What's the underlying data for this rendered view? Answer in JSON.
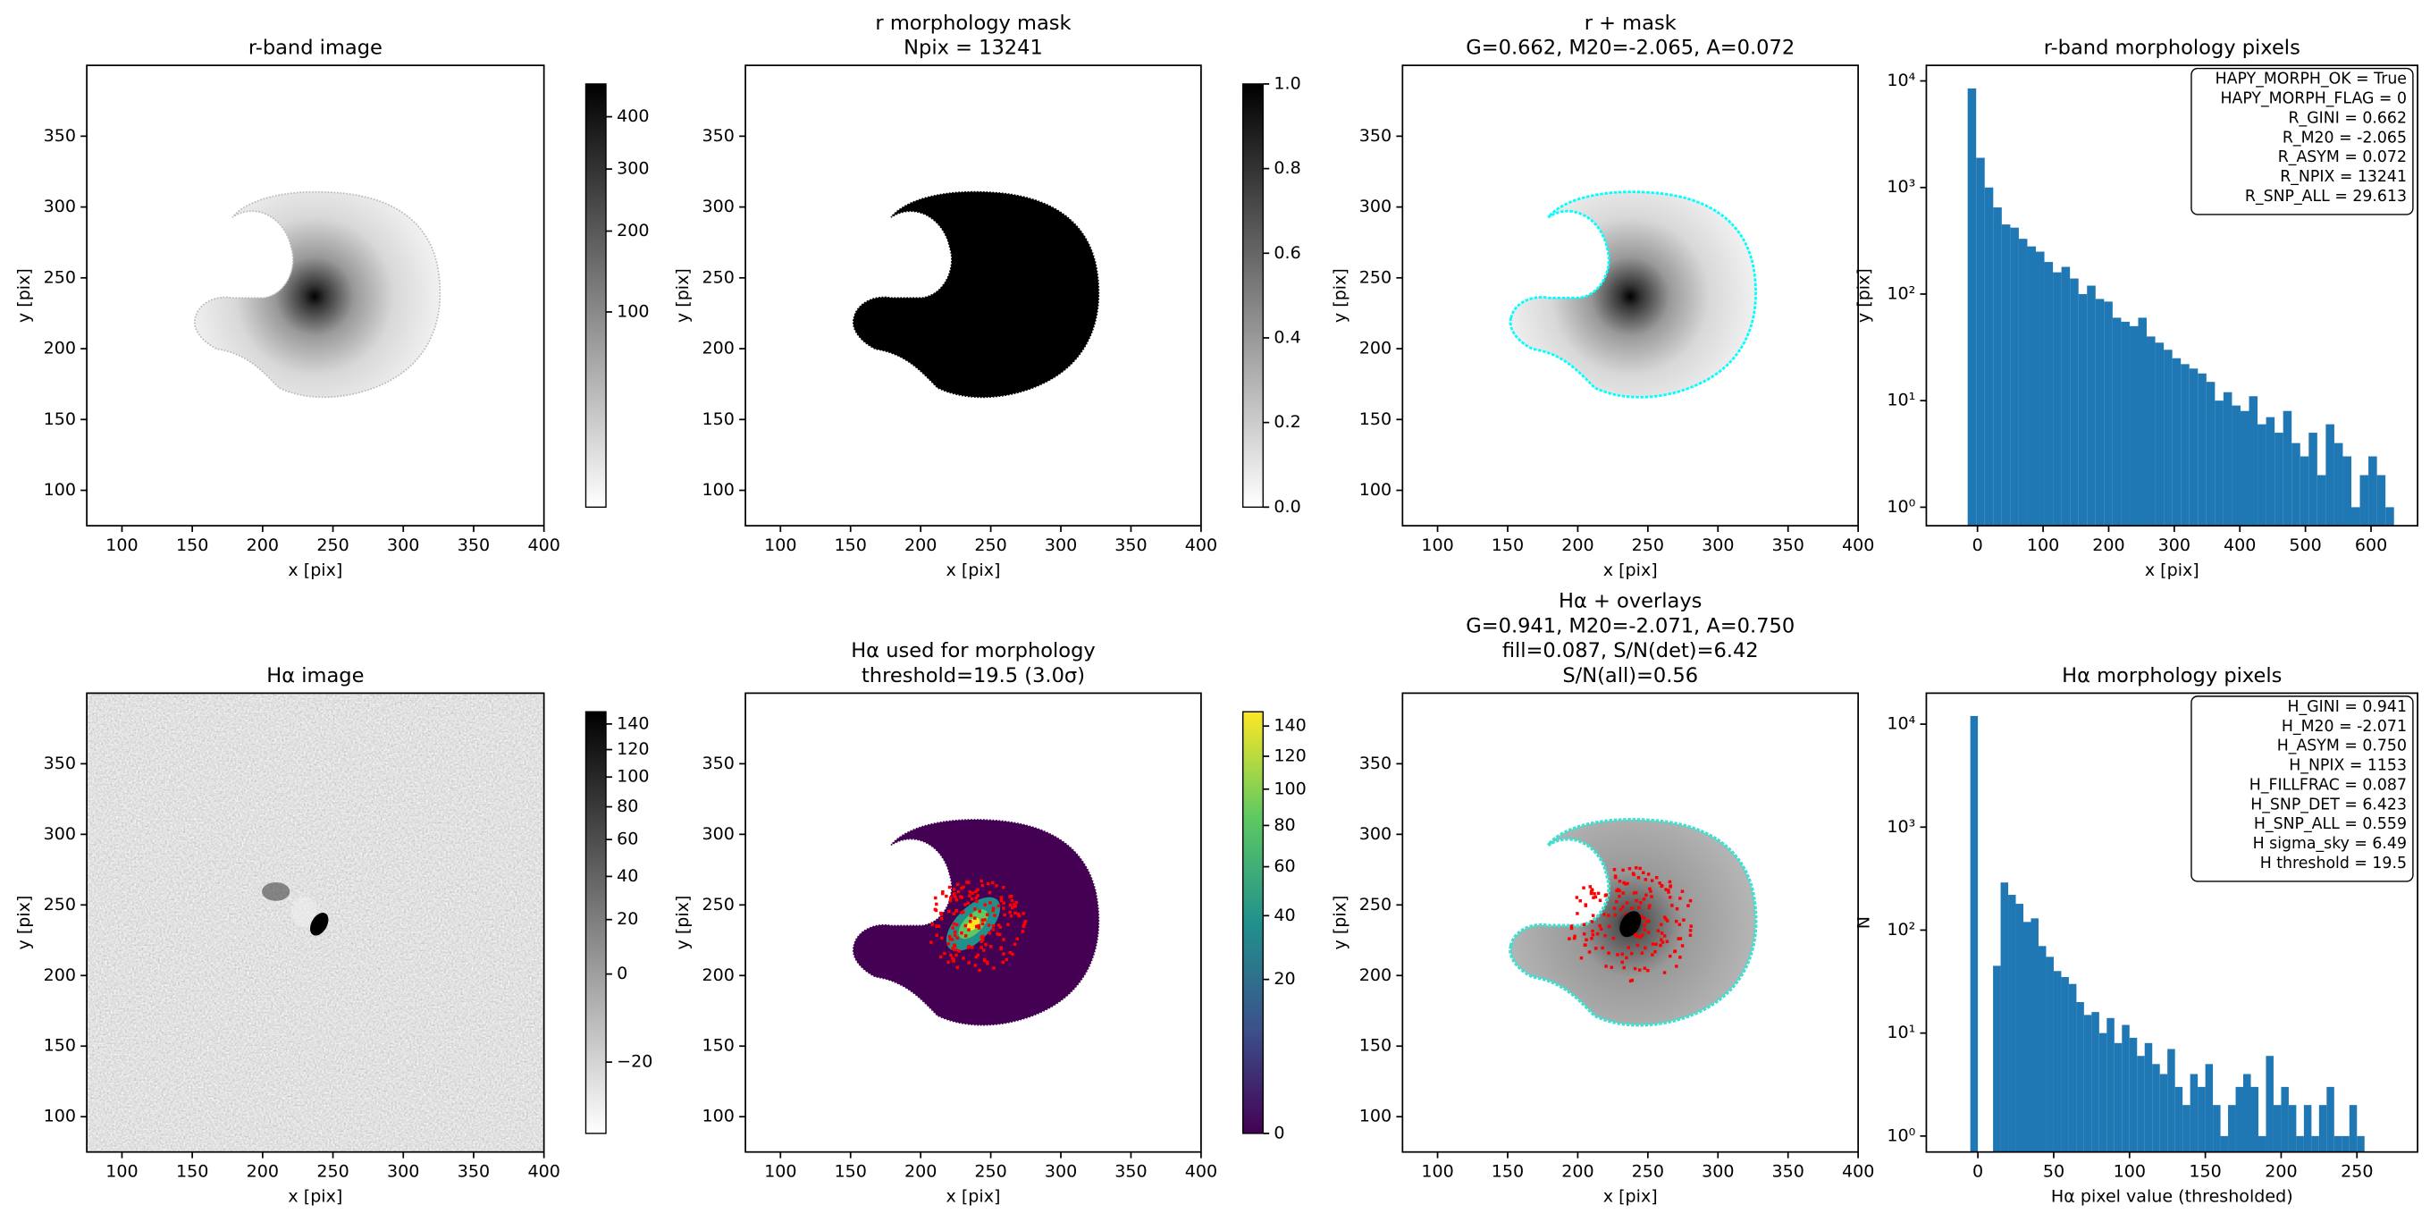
{
  "chart_data": [
    {
      "type": "image",
      "title": [
        "r-band image"
      ],
      "xlabel": "x [pix]",
      "ylabel": "y [pix]",
      "xlim": [
        75,
        400
      ],
      "ylim": [
        75,
        400
      ],
      "xticks": [
        100,
        150,
        200,
        250,
        300,
        350,
        400
      ],
      "yticks": [
        100,
        150,
        200,
        250,
        300,
        350
      ],
      "colorbar": {
        "cmap": "gray_r",
        "scale": "sqrt",
        "lim": [
          0,
          470
        ],
        "ticks": [
          100,
          200,
          300,
          400
        ]
      }
    },
    {
      "type": "image",
      "title": [
        "r morphology mask",
        "Npix = 13241"
      ],
      "xlabel": "x [pix]",
      "ylabel": "y [pix]",
      "xlim": [
        75,
        400
      ],
      "ylim": [
        75,
        400
      ],
      "xticks": [
        100,
        150,
        200,
        250,
        300,
        350,
        400
      ],
      "yticks": [
        100,
        150,
        200,
        250,
        300,
        350
      ],
      "colorbar": {
        "cmap": "gray_r",
        "scale": "linear",
        "lim": [
          0,
          1
        ],
        "ticks": [
          {
            "value": 0,
            "label": "0.0"
          },
          0.2,
          0.4,
          0.6,
          0.8,
          {
            "value": 1,
            "label": "1.0"
          }
        ]
      }
    },
    {
      "type": "image",
      "title": [
        "r + mask",
        "G=0.662, M20=-2.065, A=0.072"
      ],
      "xlabel": "x [pix]",
      "ylabel": "y [pix]",
      "xlim": [
        75,
        400
      ],
      "ylim": [
        75,
        400
      ],
      "xticks": [
        100,
        150,
        200,
        250,
        300,
        350,
        400
      ],
      "yticks": [
        100,
        150,
        200,
        250,
        300,
        350
      ]
    },
    {
      "type": "histogram",
      "title": [
        "r-band morphology pixels"
      ],
      "xlabel": "x [pix]",
      "ylabel": "y [pix]",
      "color": "#1f77b4",
      "log_y": true,
      "xlim": [
        -78,
        671
      ],
      "ylim": [
        0.67,
        14000
      ],
      "xticks": [
        0,
        100,
        200,
        300,
        400,
        500,
        600
      ],
      "yticks": [
        {
          "value": 1,
          "label": "10⁰"
        },
        {
          "value": 10,
          "label": "10¹"
        },
        {
          "value": 100,
          "label": "10²"
        },
        {
          "value": 1000,
          "label": "10³"
        },
        {
          "value": 10000,
          "label": "10⁴"
        }
      ],
      "bins": [
        -15,
        -2,
        11,
        24,
        37,
        50,
        63,
        76,
        89,
        102,
        115,
        128,
        141,
        154,
        167,
        180,
        193,
        206,
        219,
        232,
        245,
        258,
        271,
        284,
        297,
        310,
        323,
        336,
        349,
        362,
        375,
        388,
        401,
        414,
        427,
        440,
        453,
        466,
        479,
        492,
        505,
        518,
        531,
        544,
        557,
        570,
        583,
        596,
        609,
        622,
        635
      ],
      "values": [
        8500,
        1900,
        1000,
        650,
        450,
        420,
        330,
        280,
        250,
        200,
        160,
        180,
        140,
        100,
        120,
        90,
        85,
        60,
        55,
        50,
        60,
        40,
        35,
        30,
        25,
        22,
        20,
        18,
        15,
        10,
        12,
        9,
        8,
        11,
        6,
        7,
        5,
        8,
        4,
        3,
        5,
        2,
        6,
        4,
        3,
        1,
        2,
        3,
        2,
        1
      ],
      "annotation": [
        "HAPY_MORPH_OK = True",
        "HAPY_MORPH_FLAG = 0",
        "R_GINI = 0.662",
        "R_M20 = -2.065",
        "R_ASYM = 0.072",
        "R_NPIX = 13241",
        "R_SNP_ALL = 29.613"
      ]
    },
    {
      "type": "image",
      "title": [
        "Hα image"
      ],
      "xlabel": "x [pix]",
      "ylabel": "y [pix]",
      "xlim": [
        75,
        400
      ],
      "ylim": [
        75,
        400
      ],
      "xticks": [
        100,
        150,
        200,
        250,
        300,
        350,
        400
      ],
      "yticks": [
        100,
        150,
        200,
        250,
        300,
        350
      ],
      "colorbar": {
        "cmap": "gray_r",
        "scale": "sqrt",
        "lim": [
          -25,
          150
        ],
        "ticks": [
          {
            "value": -20,
            "label": "−20"
          },
          0,
          20,
          40,
          60,
          80,
          100,
          120,
          140
        ]
      }
    },
    {
      "type": "image",
      "title": [
        "Hα used for morphology",
        "threshold=19.5 (3.0σ)"
      ],
      "xlabel": "x [pix]",
      "ylabel": "y [pix]",
      "xlim": [
        75,
        400
      ],
      "ylim": [
        75,
        400
      ],
      "xticks": [
        100,
        150,
        200,
        250,
        300,
        350,
        400
      ],
      "yticks": [
        100,
        150,
        200,
        250,
        300,
        350
      ],
      "colorbar": {
        "cmap": "viridis",
        "scale": "sqrt",
        "lim": [
          0,
          150
        ],
        "ticks": [
          0,
          20,
          40,
          60,
          80,
          100,
          120,
          140
        ]
      }
    },
    {
      "type": "image",
      "title": [
        "Hα + overlays",
        "G=0.941, M20=-2.071, A=0.750",
        "fill=0.087, S/N(det)=6.42",
        "S/N(all)=0.56"
      ],
      "xlabel": "x [pix]",
      "ylabel": "y [pix]",
      "xlim": [
        75,
        400
      ],
      "ylim": [
        75,
        400
      ],
      "xticks": [
        100,
        150,
        200,
        250,
        300,
        350,
        400
      ],
      "yticks": [
        100,
        150,
        200,
        250,
        300,
        350
      ]
    },
    {
      "type": "histogram",
      "title": [
        "Hα morphology pixels"
      ],
      "xlabel": "Hα pixel value (thresholded)",
      "ylabel": "N",
      "color": "#1f77b4",
      "log_y": true,
      "xlim": [
        -34,
        290
      ],
      "ylim": [
        0.7,
        20000
      ],
      "xticks": [
        0,
        50,
        100,
        150,
        200,
        250
      ],
      "yticks": [
        {
          "value": 1,
          "label": "10⁰"
        },
        {
          "value": 10,
          "label": "10¹"
        },
        {
          "value": 100,
          "label": "10²"
        },
        {
          "value": 1000,
          "label": "10³"
        },
        {
          "value": 10000,
          "label": "10⁴"
        }
      ],
      "bins": [
        -5,
        0,
        5,
        10,
        15,
        20,
        25,
        30,
        35,
        40,
        45,
        50,
        55,
        60,
        65,
        70,
        75,
        80,
        85,
        90,
        95,
        100,
        105,
        110,
        115,
        120,
        125,
        130,
        135,
        140,
        145,
        150,
        155,
        160,
        165,
        170,
        175,
        180,
        185,
        190,
        195,
        200,
        205,
        210,
        215,
        220,
        225,
        230,
        235,
        240,
        245,
        250,
        255
      ],
      "values": [
        12000,
        0,
        0,
        45,
        290,
        220,
        180,
        120,
        130,
        70,
        55,
        40,
        35,
        30,
        20,
        15,
        16,
        10,
        14,
        8,
        12,
        9,
        6,
        8,
        5,
        4,
        7,
        3,
        2,
        4,
        3,
        5,
        2,
        1,
        2,
        3,
        4,
        3,
        1,
        6,
        2,
        3,
        2,
        1,
        2,
        1,
        2,
        3,
        1,
        1,
        2,
        1
      ],
      "annotation": [
        "H_GINI = 0.941",
        "H_M20 = -2.071",
        "H_ASYM = 0.750",
        "H_NPIX = 1153",
        "H_FILLFRAC = 0.087",
        "H_SNP_DET = 6.423",
        "H_SNP_ALL = 0.559",
        "H sigma_sky = 6.49",
        "H threshold = 19.5"
      ]
    }
  ]
}
